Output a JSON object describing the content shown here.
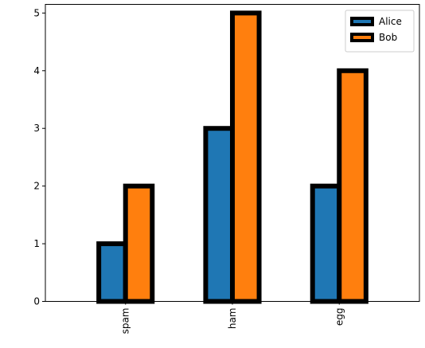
{
  "chart_data": {
    "type": "bar",
    "categories": [
      "spam",
      "ham",
      "egg"
    ],
    "series": [
      {
        "name": "Alice",
        "values": [
          1,
          3,
          2
        ],
        "color": "#1f77b4"
      },
      {
        "name": "Bob",
        "values": [
          2,
          5,
          4
        ],
        "color": "#ff7f0e"
      }
    ],
    "bar_edge_color": "#000000",
    "title": "",
    "xlabel": "",
    "ylabel": "",
    "ylim": [
      0,
      5.15
    ],
    "yticks": [
      0,
      1,
      2,
      3,
      4,
      5
    ],
    "xtick_rotation": 90,
    "grid": false,
    "legend_position": "top-right"
  }
}
